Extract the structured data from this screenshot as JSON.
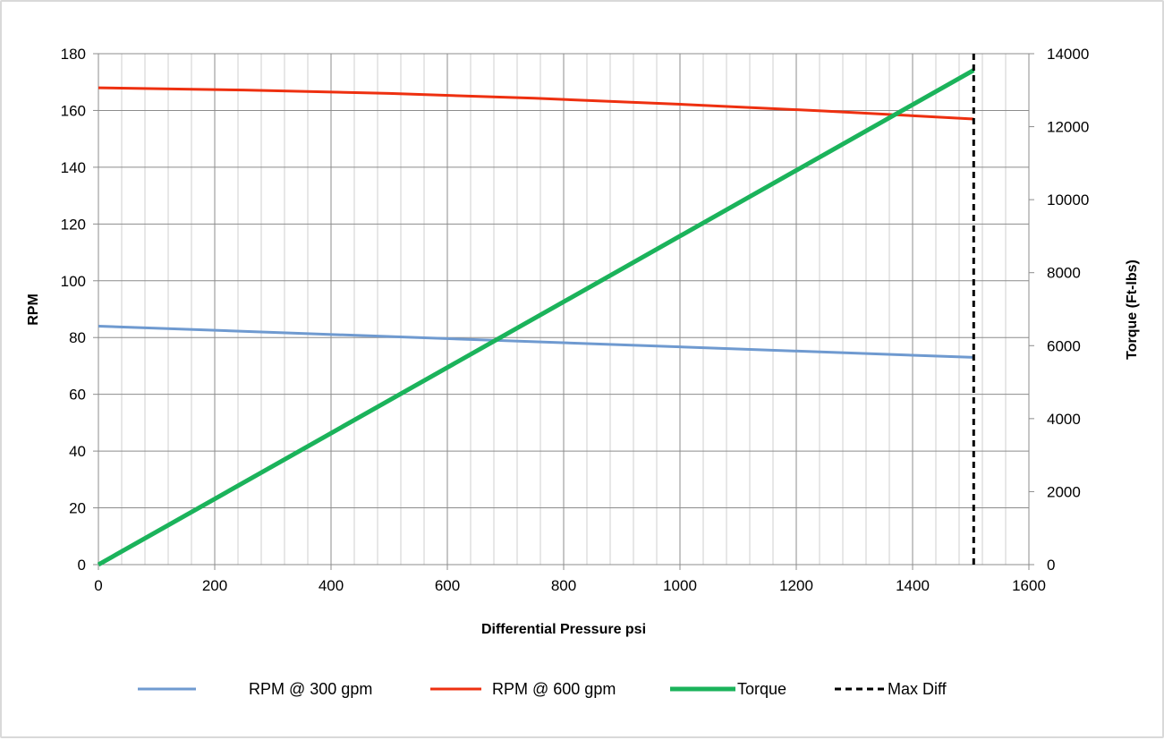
{
  "chart_data": {
    "type": "line",
    "title": "",
    "xlabel": "Differential Pressure psi",
    "ylabel": "RPM",
    "y2label": "Torque (Ft-lbs)",
    "xlim": [
      0,
      1600
    ],
    "ylim": [
      0,
      180
    ],
    "y2lim": [
      0,
      14000
    ],
    "x_ticks": [
      "0",
      "200",
      "400",
      "600",
      "800",
      "1000",
      "1200",
      "1400",
      "1600"
    ],
    "y_ticks": [
      "0",
      "20",
      "40",
      "60",
      "80",
      "100",
      "120",
      "140",
      "160",
      "180"
    ],
    "y2_ticks": [
      "0",
      "2000",
      "4000",
      "6000",
      "8000",
      "10000",
      "12000",
      "14000"
    ],
    "grid": true,
    "legend_position": "bottom",
    "series": [
      {
        "name": "RPM @ 300 gpm",
        "axis": "left",
        "color": "#6f9ad0",
        "dash": "solid",
        "x": [
          0,
          1505
        ],
        "values": [
          84,
          73
        ]
      },
      {
        "name": "RPM @ 600 gpm",
        "axis": "left",
        "color": "#ee3010",
        "dash": "solid",
        "x": [
          0,
          250,
          500,
          750,
          1000,
          1250,
          1505
        ],
        "values": [
          168,
          167.2,
          166,
          164.3,
          162.2,
          159.8,
          157
        ]
      },
      {
        "name": "Torque",
        "axis": "right",
        "color": "#1bb35b",
        "dash": "solid",
        "x": [
          0,
          1505
        ],
        "values": [
          0,
          13550
        ]
      },
      {
        "name": "Max Diff",
        "axis": "left",
        "color": "#000000",
        "dash": "dashed",
        "x": [
          1505,
          1505
        ],
        "values": [
          0,
          180
        ]
      }
    ]
  }
}
